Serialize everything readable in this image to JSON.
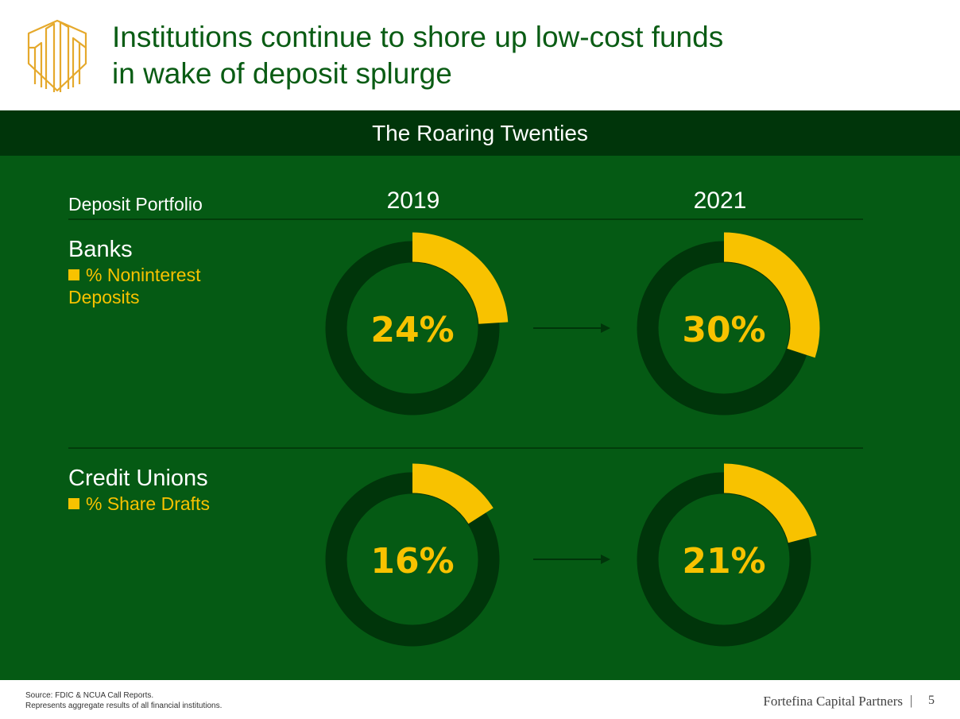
{
  "header": {
    "title_line1": "Institutions continue to shore up low-cost funds",
    "title_line2": "in wake of deposit splurge",
    "band": "The Roaring Twenties",
    "logo_icon": "buildings-icon"
  },
  "table": {
    "column_label": "Deposit Portfolio",
    "years": [
      "2019",
      "2021"
    ]
  },
  "segments": [
    {
      "title": "Banks",
      "legend_prefix": "% Noninterest",
      "legend_suffix": "Deposits"
    },
    {
      "title": "Credit Unions",
      "legend_prefix": "% Share Drafts",
      "legend_suffix": ""
    }
  ],
  "chart_data": {
    "type": "pie",
    "variant": "donut",
    "categories": [
      "2019",
      "2021"
    ],
    "series": [
      {
        "name": "Banks — % Noninterest Deposits",
        "values": [
          24,
          30
        ],
        "labels": [
          "24%",
          "30%"
        ]
      },
      {
        "name": "Credit Unions — % Share Drafts",
        "values": [
          16,
          21
        ],
        "labels": [
          "16%",
          "21%"
        ]
      }
    ],
    "colors": {
      "value": "#f8c200",
      "remainder": "#00350a",
      "arrow": "#00350a"
    }
  },
  "footer": {
    "source_line1": "Source: FDIC & NCUA Call Reports.",
    "source_line2": "Represents aggregate results of all financial institutions.",
    "brand": "Fortefina Capital Partners",
    "separator": "|",
    "page": "5"
  },
  "colors": {
    "title_green": "#0a5c14",
    "panel_green": "#055a14",
    "dark_green": "#00350a",
    "accent_gold": "#f8c200"
  }
}
